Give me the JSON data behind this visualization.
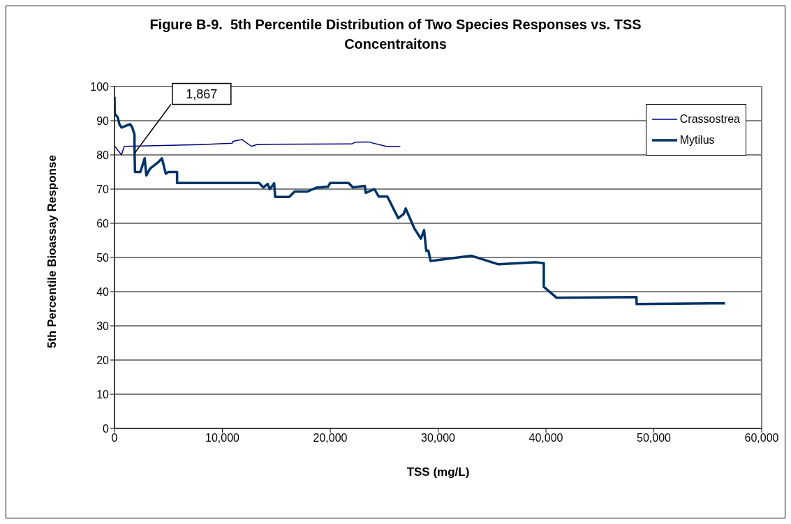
{
  "chart_data": {
    "type": "line",
    "title": "Figure B-9.  5th Percentile Distribution of Two Species Responses vs. TSS Concentraitons",
    "xlabel": "TSS (mg/L)",
    "ylabel": "5th Percentile Bioassay Response",
    "xlim": [
      0,
      60000
    ],
    "xticks": [
      {
        "value": 0,
        "label": "0"
      },
      {
        "value": 10000,
        "label": "10,000"
      },
      {
        "value": 20000,
        "label": "20,000"
      },
      {
        "value": 30000,
        "label": "30,000"
      },
      {
        "value": 40000,
        "label": "40,000"
      },
      {
        "value": 50000,
        "label": "50,000"
      },
      {
        "value": 60000,
        "label": "60,000"
      }
    ],
    "ylim": [
      0,
      100
    ],
    "yticks": [
      0,
      10,
      20,
      30,
      40,
      50,
      60,
      70,
      80,
      90,
      100
    ],
    "grid": "y",
    "legend": "top right",
    "marker": "none",
    "line_style": "solid",
    "annotations": [
      {
        "text": "1,867",
        "x": 1867,
        "y": 80.5
      }
    ],
    "series": [
      {
        "name": "Crassostrea",
        "color": "#000080",
        "x": [
          30,
          650,
          900,
          8000,
          10900,
          11000,
          11800,
          12700,
          13200,
          14700,
          22000,
          22300,
          23500,
          25200,
          26500
        ],
        "values": [
          82.5,
          80,
          82.5,
          83,
          83.4,
          84,
          84.5,
          82.5,
          83,
          83.1,
          83.2,
          83.7,
          83.8,
          82.5,
          82.5
        ]
      },
      {
        "name": "Mytilus",
        "color": "#003366",
        "x": [
          0,
          20,
          300,
          450,
          650,
          1450,
          1650,
          1850,
          1867,
          1900,
          2400,
          2800,
          2950,
          3300,
          4100,
          4400,
          4750,
          5000,
          5800,
          5800,
          13400,
          13800,
          14200,
          14400,
          14800,
          14900,
          16200,
          16700,
          17900,
          18700,
          19800,
          20000,
          21700,
          22100,
          23200,
          23300,
          24100,
          24500,
          25300,
          26300,
          26800,
          27000,
          27800,
          28400,
          28700,
          28900,
          29100,
          29300,
          30600,
          33100,
          35600,
          39100,
          39800,
          39800,
          41000,
          48400,
          48400,
          56600
        ],
        "values": [
          97,
          92,
          91,
          89,
          88,
          89,
          88,
          86,
          80,
          75,
          75,
          79,
          74,
          76,
          78,
          79,
          74.5,
          75,
          75,
          71.8,
          71.8,
          70.5,
          71.5,
          70,
          71.7,
          67.7,
          67.7,
          69.3,
          69.3,
          70.4,
          70.7,
          71.8,
          71.8,
          70.5,
          70.9,
          68.9,
          70,
          67.8,
          67.8,
          61.5,
          62.7,
          64.3,
          58.5,
          55.5,
          58,
          52,
          52,
          49,
          49.5,
          50.5,
          48,
          48.6,
          48.3,
          41.4,
          38.2,
          38.4,
          36.4,
          36.6
        ]
      }
    ]
  }
}
